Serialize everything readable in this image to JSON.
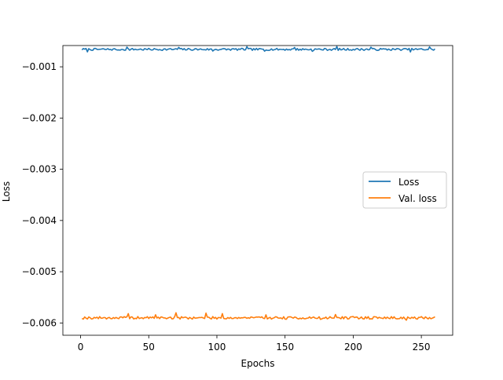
{
  "chart_data": {
    "type": "line",
    "title": "",
    "xlabel": "Epochs",
    "ylabel": "Loss",
    "xlim": [
      -13,
      273
    ],
    "ylim": [
      -0.00624,
      -0.000585
    ],
    "xticks": [
      0,
      50,
      100,
      150,
      200,
      250
    ],
    "yticks": [
      -0.001,
      -0.002,
      -0.003,
      -0.004,
      -0.005,
      -0.006
    ],
    "ytick_labels": [
      "−0.001",
      "−0.002",
      "−0.003",
      "−0.004",
      "−0.005",
      "−0.006"
    ],
    "grid": false,
    "legend_position": "center-right",
    "series": [
      {
        "name": "Loss",
        "color": "#1f77b4",
        "x_start": 1,
        "x_end": 260,
        "base": -0.00066,
        "noise": 4e-05,
        "seed": 7,
        "values_note": ""
      },
      {
        "name": "Val. loss",
        "color": "#ff7f0e",
        "x_start": 1,
        "x_end": 260,
        "base": -0.0059,
        "noise": 5e-05,
        "seed": 19,
        "values_note": ""
      }
    ]
  }
}
